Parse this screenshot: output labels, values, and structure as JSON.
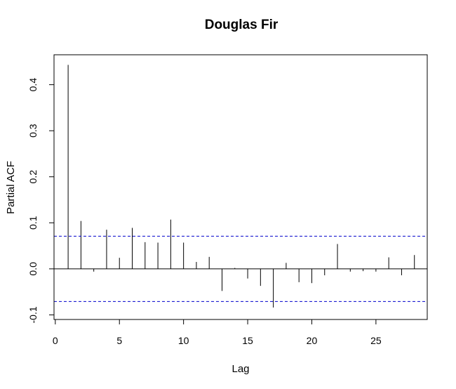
{
  "chart_data": {
    "type": "bar",
    "title": "Douglas Fir",
    "xlabel": "Lag",
    "ylabel": "Partial ACF",
    "xlim": [
      -0.1,
      29
    ],
    "ylim": [
      -0.11,
      0.465
    ],
    "x_ticks": [
      0,
      5,
      10,
      15,
      20,
      25
    ],
    "y_ticks": [
      -0.1,
      0.0,
      0.1,
      0.2,
      0.3,
      0.4
    ],
    "x": [
      1,
      2,
      3,
      4,
      5,
      6,
      7,
      8,
      9,
      10,
      11,
      12,
      13,
      14,
      15,
      16,
      17,
      18,
      19,
      20,
      21,
      22,
      23,
      24,
      25,
      26,
      27,
      28
    ],
    "values": [
      0.443,
      0.104,
      -0.006,
      0.085,
      0.024,
      0.089,
      0.058,
      0.057,
      0.107,
      0.057,
      0.015,
      0.026,
      -0.048,
      0.002,
      -0.021,
      -0.037,
      -0.084,
      0.013,
      -0.029,
      -0.031,
      -0.014,
      0.054,
      -0.006,
      -0.005,
      -0.006,
      0.025,
      -0.014,
      0.03
    ],
    "confidence_bounds": [
      0.071,
      -0.071
    ],
    "confidence_color": "#0000cc",
    "grid": false
  }
}
